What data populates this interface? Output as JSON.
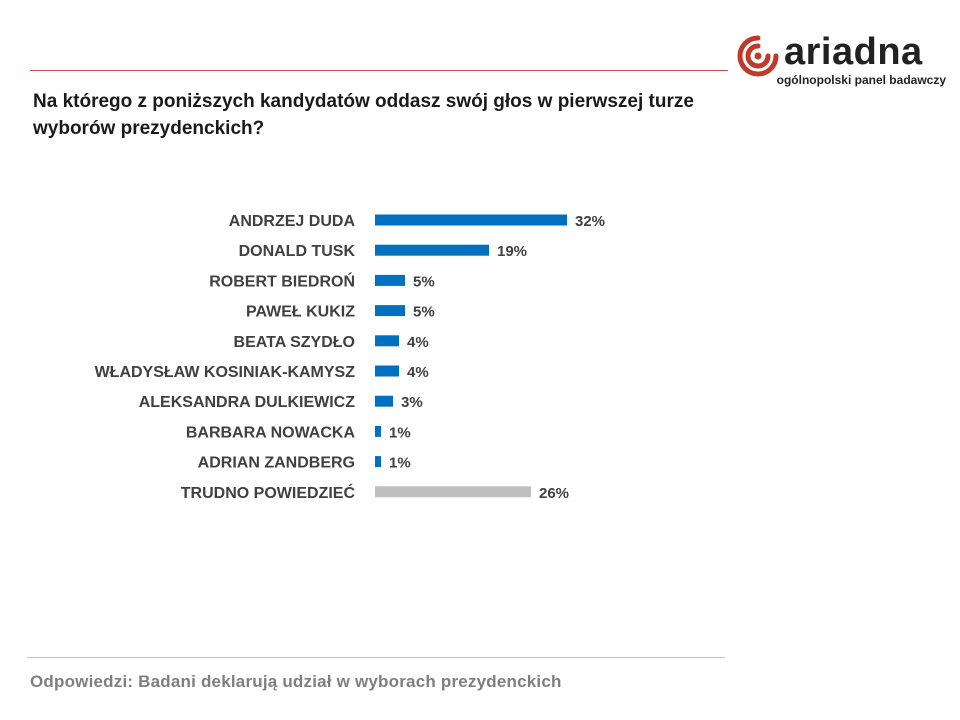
{
  "brand": {
    "name": "ariadna",
    "tagline": "ogólnopolski panel badawczy",
    "accent_color": "#c0392b"
  },
  "question": "Na którego z poniższych kandydatów oddasz swój głos w pierwszej turze wyborów prezydenckich?",
  "footnote": "Odpowiedzi: Badani deklarują udział w wyborach prezydenckich",
  "chart_data": {
    "type": "bar",
    "orientation": "horizontal",
    "categories": [
      "ANDRZEJ DUDA",
      "DONALD TUSK",
      "ROBERT BIEDROŃ",
      "PAWEŁ KUKIZ",
      "BEATA SZYDŁO",
      "WŁADYSŁAW KOSINIAK-KAMYSZ",
      "ALEKSANDRA DULKIEWICZ",
      "BARBARA NOWACKA",
      "ADRIAN ZANDBERG",
      "TRUDNO POWIEDZIEĆ"
    ],
    "values": [
      32,
      19,
      5,
      5,
      4,
      4,
      3,
      1,
      1,
      26
    ],
    "value_labels": [
      "32%",
      "19%",
      "5%",
      "5%",
      "4%",
      "4%",
      "3%",
      "1%",
      "1%",
      "26%"
    ],
    "colors": [
      "#0070c0",
      "#0070c0",
      "#0070c0",
      "#0070c0",
      "#0070c0",
      "#0070c0",
      "#0070c0",
      "#0070c0",
      "#0070c0",
      "#bfbfbf"
    ],
    "unit": "%",
    "axis_visible": false,
    "grid": false,
    "legend": "none"
  }
}
